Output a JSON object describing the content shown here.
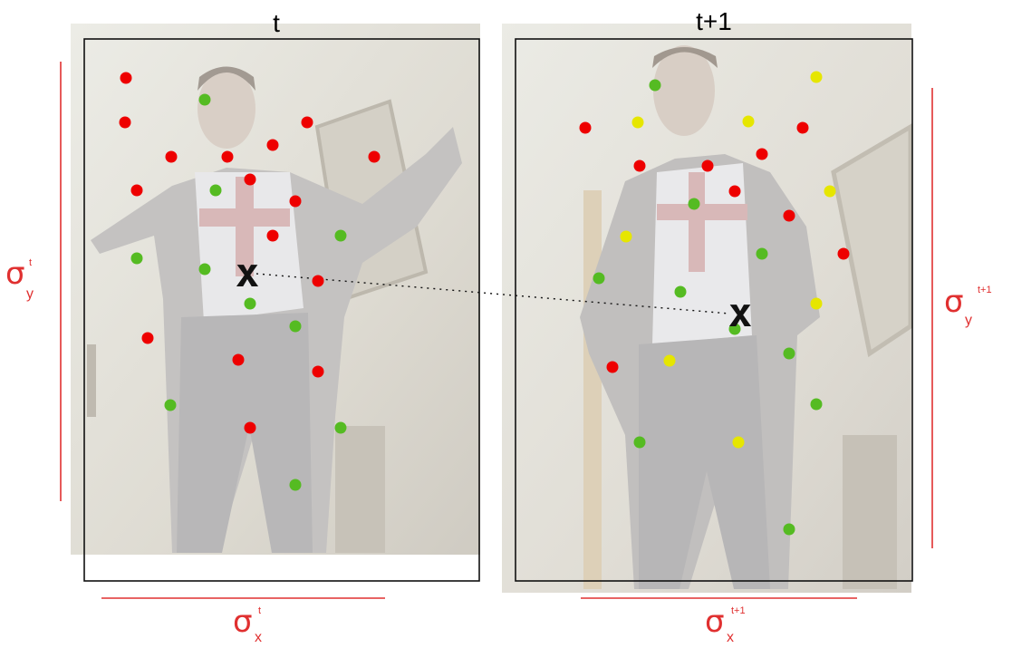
{
  "frames": [
    {
      "label": "t",
      "sigma_x": {
        "symbol": "σ",
        "sub": "x",
        "sup": "t"
      },
      "sigma_y": {
        "symbol": "σ",
        "sub": "y",
        "sup": "t"
      },
      "centroid": "x"
    },
    {
      "label": "t+1",
      "sigma_x": {
        "symbol": "σ",
        "sub": "x",
        "sup": "t+1"
      },
      "sigma_y": {
        "symbol": "σ",
        "sub": "y",
        "sup": "t+1"
      },
      "centroid": "x"
    }
  ],
  "colors": {
    "red": "#ee0000",
    "green": "#55bb22",
    "yellow": "#e6e600",
    "sigma": "#e03030",
    "frame_border": "#111111"
  }
}
